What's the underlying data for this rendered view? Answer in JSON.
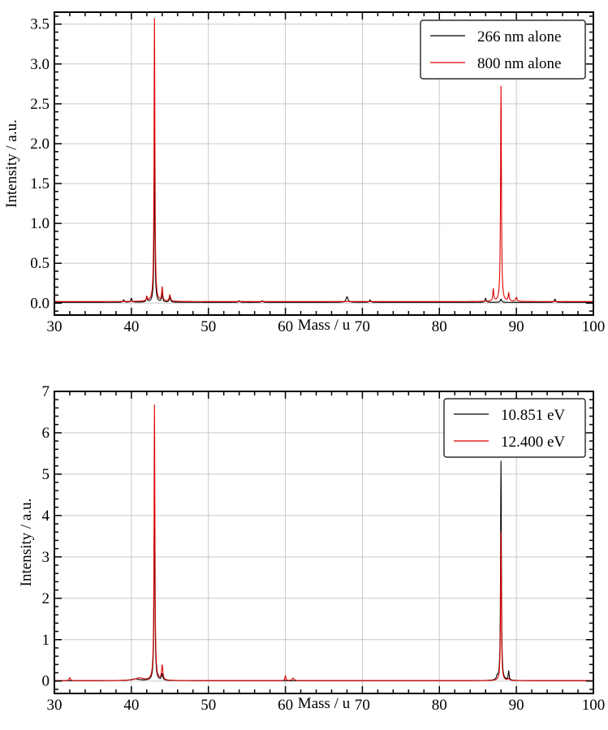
{
  "chart_data": [
    {
      "type": "line",
      "xlabel": "Mass / u",
      "ylabel": "Intensity / a.u.",
      "xlim": [
        30,
        100
      ],
      "ylim": [
        -0.15,
        3.65
      ],
      "xticks": [
        30,
        40,
        50,
        60,
        70,
        80,
        90,
        100
      ],
      "xtick_labels": [
        "30",
        "40",
        "50",
        "60",
        "70",
        "80",
        "90",
        "100"
      ],
      "yticks": [
        0.0,
        0.5,
        1.0,
        1.5,
        2.0,
        2.5,
        3.0,
        3.5
      ],
      "ytick_labels": [
        "0.0",
        "0.5",
        "1.0",
        "1.5",
        "2.0",
        "2.5",
        "3.0",
        "3.5"
      ],
      "grid": true,
      "legend_position": "top-right",
      "series": [
        {
          "name": "266 nm alone",
          "color": "#000000",
          "baseline": 0.01,
          "peaks": [
            [
              39,
              0.03,
              0.2
            ],
            [
              40,
              0.05,
              0.2
            ],
            [
              42,
              0.07,
              0.15
            ],
            [
              43,
              1.97,
              0.13
            ],
            [
              44,
              0.12,
              0.15
            ],
            [
              45,
              0.06,
              0.2
            ],
            [
              54,
              0.02,
              0.2
            ],
            [
              57,
              0.02,
              0.2
            ],
            [
              68,
              0.07,
              0.3
            ],
            [
              71,
              0.03,
              0.2
            ],
            [
              86,
              0.05,
              0.2
            ],
            [
              88,
              0.04,
              0.2
            ],
            [
              95,
              0.04,
              0.2
            ]
          ]
        },
        {
          "name": "800 nm alone",
          "color": "#e00000",
          "baseline": 0.02,
          "peaks": [
            [
              42,
              0.05,
              0.15
            ],
            [
              43,
              3.55,
              0.13
            ],
            [
              44,
              0.17,
              0.15
            ],
            [
              45,
              0.08,
              0.2
            ],
            [
              87,
              0.15,
              0.15
            ],
            [
              88,
              2.7,
              0.13
            ],
            [
              89,
              0.1,
              0.15
            ],
            [
              90,
              0.05,
              0.2
            ]
          ]
        }
      ]
    },
    {
      "type": "line",
      "xlabel": "Mass / u",
      "ylabel": "Intensity / a.u.",
      "xlim": [
        30,
        100
      ],
      "ylim": [
        -0.3,
        7.0
      ],
      "xticks": [
        30,
        40,
        50,
        60,
        70,
        80,
        90,
        100
      ],
      "xtick_labels": [
        "30",
        "40",
        "50",
        "60",
        "70",
        "80",
        "90",
        "100"
      ],
      "yticks": [
        0,
        1,
        2,
        3,
        4,
        5,
        6,
        7
      ],
      "ytick_labels": [
        "0",
        "1",
        "2",
        "3",
        "4",
        "5",
        "6",
        "7"
      ],
      "grid": true,
      "legend_position": "top-right",
      "series": [
        {
          "name": "10.851 eV",
          "color": "#000000",
          "baseline": 0.01,
          "peaks": [
            [
              40.5,
              0.04,
              1.2
            ],
            [
              43,
              4.65,
              0.13
            ],
            [
              44,
              0.15,
              0.2
            ],
            [
              87.5,
              0.08,
              0.2
            ],
            [
              88,
              5.3,
              0.12
            ],
            [
              89,
              0.22,
              0.15
            ]
          ]
        },
        {
          "name": "12.400 eV",
          "color": "#e00000",
          "baseline": 0.01,
          "peaks": [
            [
              32,
              0.07,
              0.2
            ],
            [
              41,
              0.06,
              1.3
            ],
            [
              43,
              6.65,
              0.13
            ],
            [
              44,
              0.35,
              0.2
            ],
            [
              60,
              0.12,
              0.15
            ],
            [
              61,
              0.06,
              0.3
            ],
            [
              88,
              3.6,
              0.12
            ],
            [
              89,
              0.05,
              0.2
            ]
          ]
        }
      ]
    }
  ]
}
